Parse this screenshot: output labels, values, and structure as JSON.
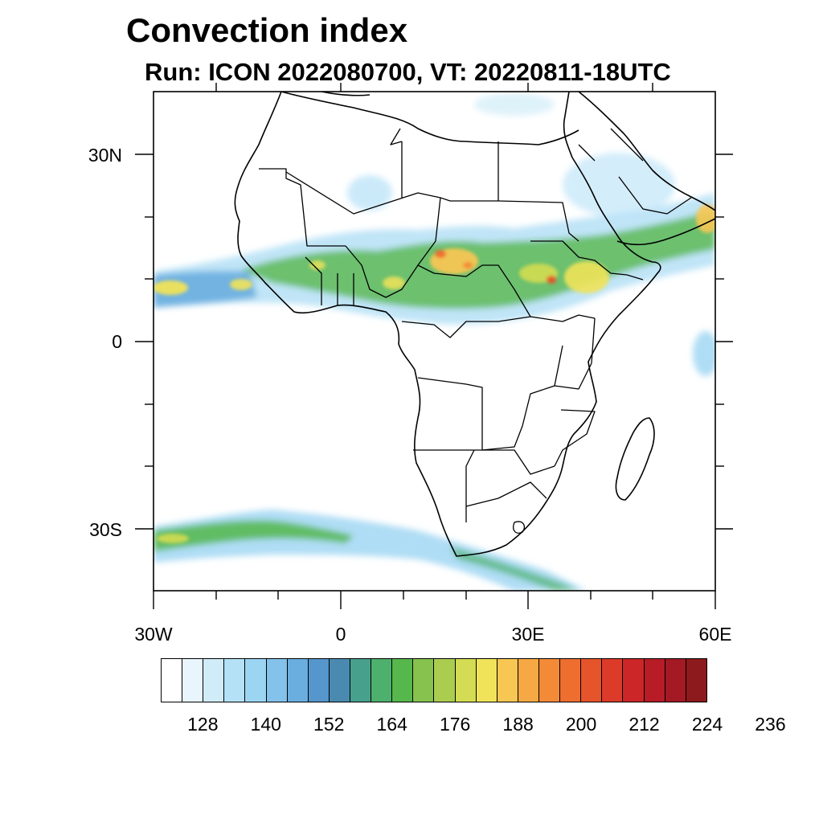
{
  "title": "Convection index",
  "subtitle": "Run: ICON 2022080700,  VT: 20220811-18UTC",
  "axes": {
    "lat_labels": [
      "30N",
      "0",
      "30S"
    ],
    "lon_labels": [
      "30W",
      "0",
      "30E",
      "60E"
    ]
  },
  "colorbar": {
    "colors": [
      "#ffffff",
      "#e8f5fc",
      "#d0ecf8",
      "#b5e1f6",
      "#9bd5f2",
      "#83c2ea",
      "#6aaee0",
      "#5596cc",
      "#4a8ab0",
      "#47a08c",
      "#4db06c",
      "#56b84c",
      "#86c24d",
      "#aacd50",
      "#d3dc52",
      "#f0e35a",
      "#f7c653",
      "#f6a844",
      "#f38a38",
      "#ee6e30",
      "#e6542b",
      "#dd3b29",
      "#cc2628",
      "#b71c27",
      "#a31a24",
      "#8d1a1c"
    ],
    "tick_labels": [
      "128",
      "140",
      "152",
      "164",
      "176",
      "188",
      "200",
      "212",
      "224",
      "236"
    ]
  }
}
